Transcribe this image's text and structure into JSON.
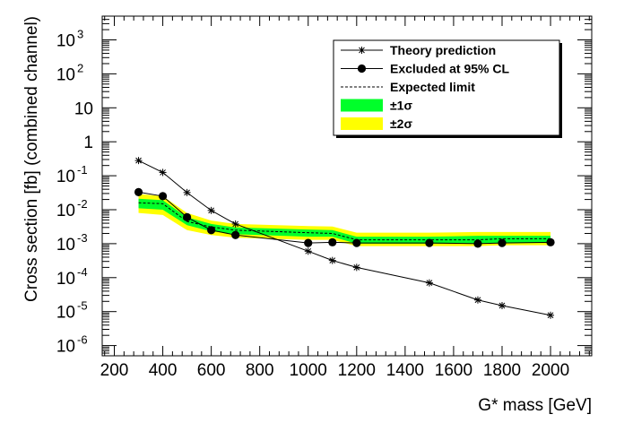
{
  "chart_data": {
    "type": "line",
    "xlabel": "G* mass [GeV]",
    "ylabel": "Cross section [fb] (combined channel)",
    "x_scale": "linear",
    "y_scale": "log",
    "xlim": [
      150,
      2170
    ],
    "ylim": [
      5e-07,
      5000
    ],
    "x_ticks": [
      200,
      400,
      600,
      800,
      1000,
      1200,
      1400,
      1600,
      1800,
      2000
    ],
    "x_tick_labels": [
      "200",
      "400",
      "600",
      "800",
      "1000",
      "1200",
      "1400",
      "1600",
      "1800",
      "2000"
    ],
    "y_ticks": [
      {
        "value": 1e-06,
        "base": "10",
        "exp": "-6"
      },
      {
        "value": 1e-05,
        "base": "10",
        "exp": "-5"
      },
      {
        "value": 0.0001,
        "base": "10",
        "exp": "-4"
      },
      {
        "value": 0.001,
        "base": "10",
        "exp": "-3"
      },
      {
        "value": 0.01,
        "base": "10",
        "exp": "-2"
      },
      {
        "value": 0.1,
        "base": "10",
        "exp": "-1"
      },
      {
        "value": 1,
        "base": "1",
        "exp": ""
      },
      {
        "value": 10,
        "base": "10",
        "exp": ""
      },
      {
        "value": 100,
        "base": "10",
        "exp": "2"
      },
      {
        "value": 1000,
        "base": "10",
        "exp": "3"
      }
    ],
    "grid": false,
    "legend_position": "top-right",
    "legend": [
      {
        "label": "Theory prediction",
        "kind": "star-line"
      },
      {
        "label": "Excluded at 95% CL",
        "kind": "dot-line"
      },
      {
        "label": "Expected limit",
        "kind": "dashed"
      },
      {
        "label": "±1σ",
        "kind": "band-green"
      },
      {
        "label": "±2σ",
        "kind": "band-yellow"
      }
    ],
    "colors": {
      "band_1sigma": "#00ff2a",
      "band_2sigma": "#ffff00",
      "line": "#000000"
    },
    "x": [
      300,
      400,
      500,
      600,
      700,
      1000,
      1100,
      1200,
      1500,
      1700,
      1800,
      2000
    ],
    "series": [
      {
        "name": "Theory prediction",
        "values": [
          0.28,
          0.125,
          0.032,
          0.0095,
          0.0038,
          0.0006,
          0.00032,
          0.0002,
          7e-05,
          2.2e-05,
          1.5e-05,
          7.8e-06
        ]
      },
      {
        "name": "Excluded at 95% CL",
        "values": [
          0.033,
          0.025,
          0.006,
          0.0025,
          0.0018,
          0.00105,
          0.0011,
          0.00105,
          0.00105,
          0.001,
          0.00105,
          0.0011
        ]
      },
      {
        "name": "Expected limit",
        "values": [
          0.016,
          0.015,
          0.0045,
          0.0031,
          0.0025,
          0.0021,
          0.002,
          0.0013,
          0.0013,
          0.0013,
          0.0014,
          0.0014
        ]
      }
    ],
    "band_1sigma": {
      "low": [
        0.011,
        0.01,
        0.0035,
        0.0023,
        0.0019,
        0.0016,
        0.0016,
        0.001,
        0.001,
        0.001,
        0.00105,
        0.00105
      ],
      "high": [
        0.021,
        0.019,
        0.006,
        0.0038,
        0.003,
        0.0026,
        0.0025,
        0.0016,
        0.0016,
        0.0017,
        0.0017,
        0.0017
      ]
    },
    "band_2sigma": {
      "low": [
        0.008,
        0.007,
        0.0025,
        0.0018,
        0.0015,
        0.0013,
        0.0013,
        0.00085,
        0.00085,
        0.00085,
        0.0009,
        0.0009
      ],
      "high": [
        0.029,
        0.025,
        0.008,
        0.0048,
        0.0038,
        0.0033,
        0.0032,
        0.0021,
        0.0021,
        0.0022,
        0.0022,
        0.0022
      ]
    }
  }
}
